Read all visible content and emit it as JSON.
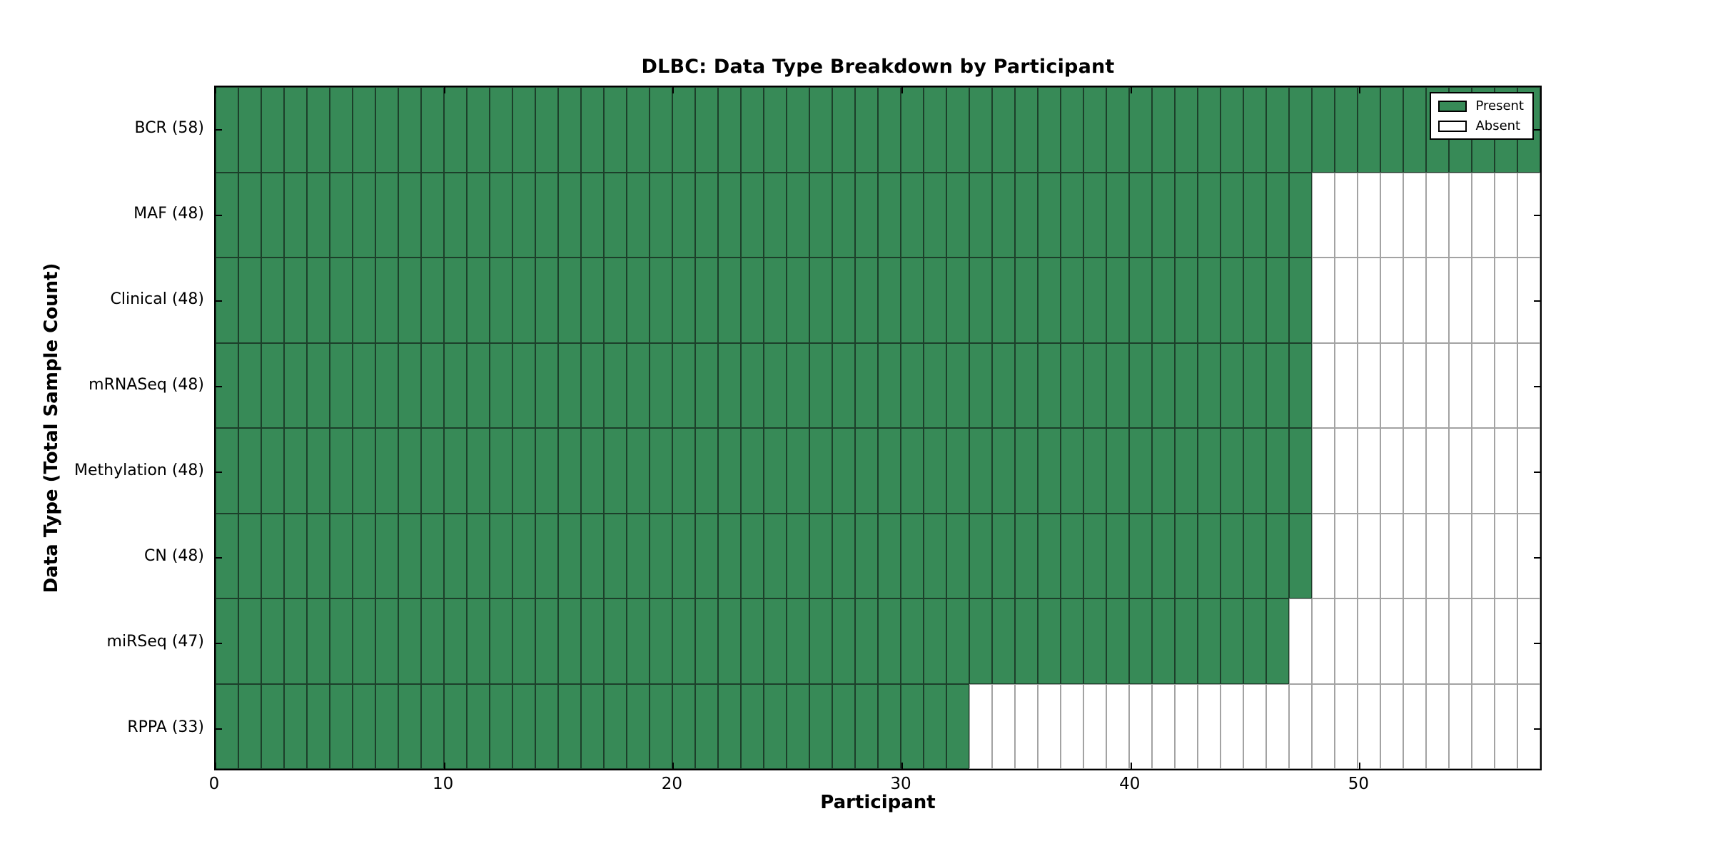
{
  "chart_data": {
    "type": "heatmap",
    "title": "DLBC: Data Type Breakdown by Participant",
    "xlabel": "Participant",
    "ylabel": "Data Type (Total Sample Count)",
    "x_range": [
      0,
      58
    ],
    "total_participants": 58,
    "x_ticks": [
      0,
      10,
      20,
      30,
      40,
      50
    ],
    "x_tick_labels": [
      "0",
      "10",
      "20",
      "30",
      "40",
      "50"
    ],
    "rows": [
      {
        "label": "BCR (58)",
        "data_type": "BCR",
        "present_count": 58
      },
      {
        "label": "MAF (48)",
        "data_type": "MAF",
        "present_count": 48
      },
      {
        "label": "Clinical (48)",
        "data_type": "Clinical",
        "present_count": 48
      },
      {
        "label": "mRNASeq (48)",
        "data_type": "mRNASeq",
        "present_count": 48
      },
      {
        "label": "Methylation (48)",
        "data_type": "Methylation",
        "present_count": 48
      },
      {
        "label": "CN (48)",
        "data_type": "CN",
        "present_count": 48
      },
      {
        "label": "miRSeq (47)",
        "data_type": "miRSeq",
        "present_count": 47
      },
      {
        "label": "RPPA (33)",
        "data_type": "RPPA",
        "present_count": 33
      }
    ],
    "legend": {
      "position": "upper right",
      "entries": [
        {
          "label": "Present",
          "swatch": "present"
        },
        {
          "label": "Absent",
          "swatch": "absent"
        }
      ]
    },
    "colors": {
      "present_fill": "#378a57",
      "absent_fill": "#ffffff",
      "present_edge": "#1c3f2a",
      "absent_edge": "#a3a3a3",
      "spine": "#000000",
      "background": "#ffffff"
    }
  }
}
